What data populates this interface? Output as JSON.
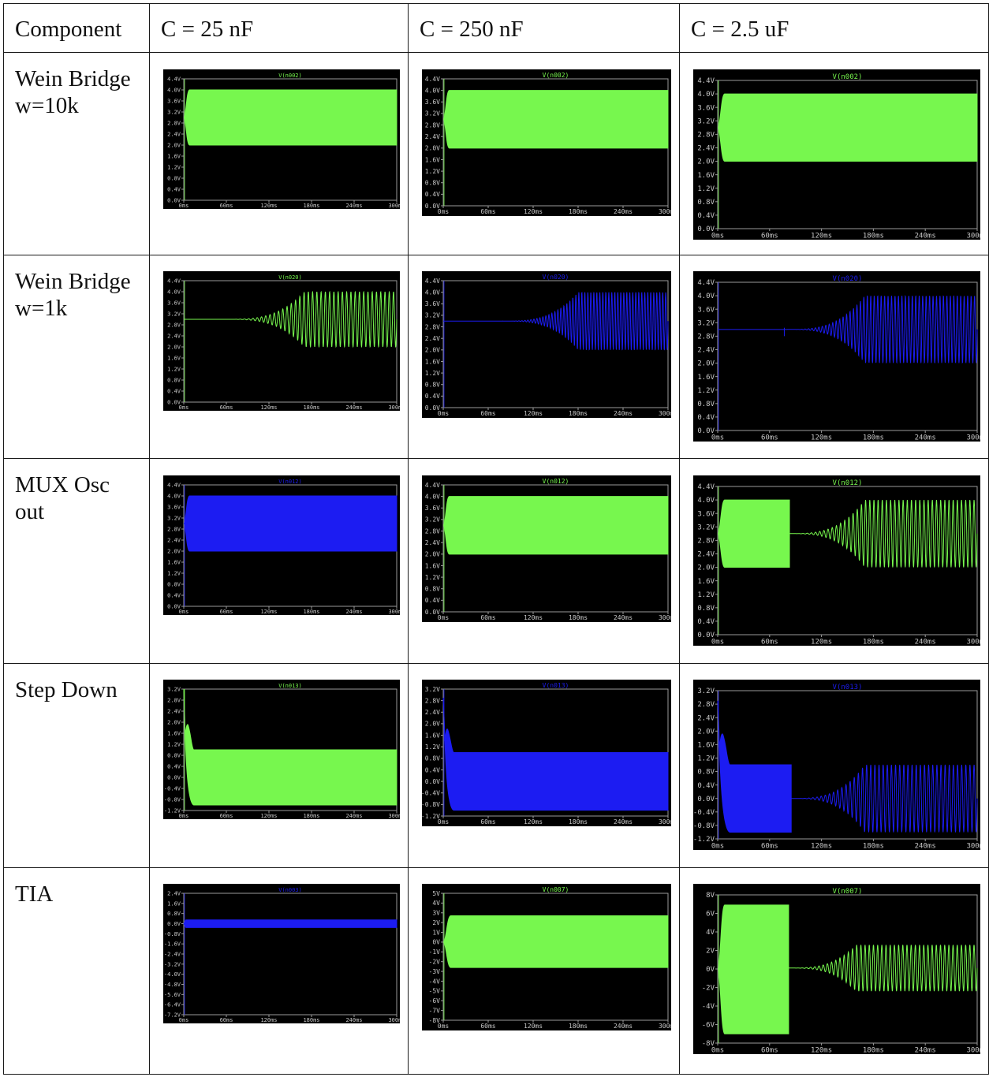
{
  "table": {
    "header": [
      "Component",
      "C = 25 nF",
      "C = 250 nF",
      "C = 2.5 uF"
    ],
    "rows": [
      {
        "label": "Wein Bridge w=10k"
      },
      {
        "label": "Wein Bridge w=1k"
      },
      {
        "label": "MUX Osc out"
      },
      {
        "label": "Step Down"
      },
      {
        "label": "TIA"
      }
    ]
  },
  "colors": {
    "green": "#77f74e",
    "blue": "#1c1cf2",
    "axis": "#9a9a9a",
    "tick_text": "#c8c8c8"
  },
  "x_ticks": [
    "0ms",
    "60ms",
    "120ms",
    "180ms",
    "240ms",
    "300ms"
  ],
  "chart_data": [
    {
      "type": "line",
      "row": "Wein Bridge w=10k",
      "cap": "C = 25 nF",
      "title": "V(n002)",
      "title_color": "#77f74e",
      "color": "#77f74e",
      "yticks": [
        "0.0V",
        "0.4V",
        "0.8V",
        "1.2V",
        "1.6V",
        "2.0V",
        "2.4V",
        "2.8V",
        "3.2V",
        "3.6V",
        "4.0V",
        "4.4V"
      ],
      "ylim": [
        0,
        4.4
      ],
      "kind": "full",
      "start": 3.0,
      "env": [
        2.0,
        4.0
      ],
      "settle_ms": 8
    },
    {
      "type": "line",
      "row": "Wein Bridge w=10k",
      "cap": "C = 250 nF",
      "title": "V(n002)",
      "title_color": "#77f74e",
      "color": "#77f74e",
      "yticks": [
        "0.0V",
        "0.4V",
        "0.8V",
        "1.2V",
        "1.6V",
        "2.0V",
        "2.4V",
        "2.8V",
        "3.2V",
        "3.6V",
        "4.0V",
        "4.4V"
      ],
      "ylim": [
        0,
        4.4
      ],
      "kind": "full",
      "start": 3.0,
      "env": [
        2.0,
        4.0
      ],
      "settle_ms": 8
    },
    {
      "type": "line",
      "row": "Wein Bridge w=10k",
      "cap": "C = 2.5 uF",
      "title": "V(n002)",
      "title_color": "#77f74e",
      "color": "#77f74e",
      "yticks": [
        "0.0V",
        "0.4V",
        "0.8V",
        "1.2V",
        "1.6V",
        "2.0V",
        "2.4V",
        "2.8V",
        "3.2V",
        "3.6V",
        "4.0V",
        "4.4V"
      ],
      "ylim": [
        0,
        4.4
      ],
      "kind": "full",
      "start": 3.0,
      "env": [
        2.0,
        4.0
      ],
      "settle_ms": 8
    },
    {
      "type": "line",
      "row": "Wein Bridge w=1k",
      "cap": "C = 25 nF",
      "title": "V(n020)",
      "title_color": "#77f74e",
      "color": "#77f74e",
      "yticks": [
        "0.0V",
        "0.4V",
        "0.8V",
        "1.2V",
        "1.6V",
        "2.0V",
        "2.4V",
        "2.8V",
        "3.2V",
        "3.6V",
        "4.0V",
        "4.4V"
      ],
      "ylim": [
        0,
        4.4
      ],
      "kind": "grow",
      "start": 3.0,
      "env": [
        2.0,
        4.0
      ],
      "grow_start_ms": 60,
      "grow_end_ms": 170,
      "cycles": 40
    },
    {
      "type": "line",
      "row": "Wein Bridge w=1k",
      "cap": "C = 250 nF",
      "title": "V(n020)",
      "title_color": "#1c1cf2",
      "color": "#1c1cf2",
      "yticks": [
        "0.0V",
        "0.4V",
        "0.8V",
        "1.2V",
        "1.6V",
        "2.0V",
        "2.4V",
        "2.8V",
        "3.2V",
        "3.6V",
        "4.0V",
        "4.4V"
      ],
      "ylim": [
        0,
        4.4
      ],
      "kind": "grow",
      "start": 3.0,
      "env": [
        2.0,
        4.0
      ],
      "grow_start_ms": 80,
      "grow_end_ms": 180,
      "cycles": 55
    },
    {
      "type": "line",
      "row": "Wein Bridge w=1k",
      "cap": "C = 2.5 uF",
      "title": "V(n020)",
      "title_color": "#1c1cf2",
      "color": "#1c1cf2",
      "yticks": [
        "0.0V",
        "0.4V",
        "0.8V",
        "1.2V",
        "1.6V",
        "2.0V",
        "2.4V",
        "2.8V",
        "3.2V",
        "3.6V",
        "4.0V",
        "4.4V"
      ],
      "ylim": [
        0,
        4.4
      ],
      "kind": "grow",
      "start": 3.0,
      "env": [
        2.0,
        4.0
      ],
      "grow_start_ms": 80,
      "grow_end_ms": 170,
      "cycles": 55,
      "glitch_ms": 77
    },
    {
      "type": "line",
      "row": "MUX Osc out",
      "cap": "C = 25 nF",
      "title": "V(n012)",
      "title_color": "#1c1cf2",
      "color": "#1c1cf2",
      "yticks": [
        "0.0V",
        "0.4V",
        "0.8V",
        "1.2V",
        "1.6V",
        "2.0V",
        "2.4V",
        "2.8V",
        "3.2V",
        "3.6V",
        "4.0V",
        "4.4V"
      ],
      "ylim": [
        0,
        4.4
      ],
      "kind": "full",
      "start": 3.0,
      "env": [
        2.0,
        4.0
      ],
      "settle_ms": 8
    },
    {
      "type": "line",
      "row": "MUX Osc out",
      "cap": "C = 250 nF",
      "title": "V(n012)",
      "title_color": "#77f74e",
      "color": "#77f74e",
      "yticks": [
        "0.0V",
        "0.4V",
        "0.8V",
        "1.2V",
        "1.6V",
        "2.0V",
        "2.4V",
        "2.8V",
        "3.2V",
        "3.6V",
        "4.0V",
        "4.4V"
      ],
      "ylim": [
        0,
        4.4
      ],
      "kind": "full",
      "start": 3.0,
      "env": [
        2.0,
        4.0
      ],
      "settle_ms": 8
    },
    {
      "type": "line",
      "row": "MUX Osc out",
      "cap": "C = 2.5 uF",
      "title": "V(n012)",
      "title_color": "#77f74e",
      "color": "#77f74e",
      "yticks": [
        "0.0V",
        "0.4V",
        "0.8V",
        "1.2V",
        "1.6V",
        "2.0V",
        "2.4V",
        "2.8V",
        "3.2V",
        "3.6V",
        "4.0V",
        "4.4V"
      ],
      "ylim": [
        0,
        4.4
      ],
      "kind": "block_then_grow",
      "start": 3.0,
      "env": [
        2.0,
        4.0
      ],
      "block_end_ms": 83,
      "grow_end_ms": 170,
      "cycles": 45
    },
    {
      "type": "line",
      "row": "Step Down",
      "cap": "C = 25 nF",
      "title": "V(n013)",
      "title_color": "#77f74e",
      "color": "#77f74e",
      "yticks": [
        "-1.2V",
        "-0.8V",
        "-0.4V",
        "0.0V",
        "0.4V",
        "0.8V",
        "1.2V",
        "1.6V",
        "2.0V",
        "2.4V",
        "2.8V",
        "3.2V"
      ],
      "ylim": [
        -1.2,
        3.2
      ],
      "kind": "decay",
      "start": 3.2,
      "env": [
        -1.0,
        1.0
      ],
      "decay_ms": 14,
      "bump": 1.9
    },
    {
      "type": "line",
      "row": "Step Down",
      "cap": "C = 250 nF",
      "title": "V(n013)",
      "title_color": "#1c1cf2",
      "color": "#1c1cf2",
      "yticks": [
        "-1.2V",
        "-0.8V",
        "-0.4V",
        "0.0V",
        "0.4V",
        "0.8V",
        "1.2V",
        "1.6V",
        "2.0V",
        "2.4V",
        "2.8V",
        "3.2V"
      ],
      "ylim": [
        -1.2,
        3.2
      ],
      "kind": "decay",
      "start": 2.9,
      "env": [
        -1.0,
        1.0
      ],
      "decay_ms": 14,
      "bump": 1.8
    },
    {
      "type": "line",
      "row": "Step Down",
      "cap": "C = 2.5 uF",
      "title": "V(n013)",
      "title_color": "#1c1cf2",
      "color": "#1c1cf2",
      "yticks": [
        "-1.2V",
        "-0.8V",
        "-0.4V",
        "0.0V",
        "0.4V",
        "0.8V",
        "1.2V",
        "1.6V",
        "2.0V",
        "2.4V",
        "2.8V",
        "3.2V"
      ],
      "ylim": [
        -1.2,
        3.2
      ],
      "kind": "decay_then_grow",
      "start": 2.9,
      "env": [
        -1.0,
        1.0
      ],
      "decay_ms": 14,
      "bump": 1.9,
      "block_end_ms": 85,
      "grow_end_ms": 170,
      "cycles": 45
    },
    {
      "type": "line",
      "row": "TIA",
      "cap": "C = 25 nF",
      "title": "V(n003)",
      "title_color": "#1c1cf2",
      "color": "#1c1cf2",
      "yticks": [
        "-7.2V",
        "-6.4V",
        "-5.6V",
        "-4.8V",
        "-4.0V",
        "-3.2V",
        "-2.4V",
        "-1.6V",
        "-0.8V",
        "0.0V",
        "0.8V",
        "1.6V",
        "2.4V"
      ],
      "ylim": [
        -7.2,
        2.4
      ],
      "kind": "band",
      "start": 0.0,
      "env": [
        -0.3,
        0.3
      ],
      "settle_ms": 3
    },
    {
      "type": "line",
      "row": "TIA",
      "cap": "C = 250 nF",
      "title": "V(n007)",
      "title_color": "#77f74e",
      "color": "#77f74e",
      "yticks": [
        "-8V",
        "-7V",
        "-6V",
        "-5V",
        "-4V",
        "-3V",
        "-2V",
        "-1V",
        "0V",
        "1V",
        "2V",
        "3V",
        "4V",
        "5V"
      ],
      "ylim": [
        -8,
        5
      ],
      "kind": "full",
      "start": 0.0,
      "env": [
        -2.6,
        2.7
      ],
      "settle_ms": 10
    },
    {
      "type": "line",
      "row": "TIA",
      "cap": "C = 2.5 uF",
      "title": "V(n007)",
      "title_color": "#77f74e",
      "color": "#77f74e",
      "yticks": [
        "-8V",
        "-6V",
        "-4V",
        "-2V",
        "0V",
        "2V",
        "4V",
        "6V",
        "8V"
      ],
      "ylim": [
        -8,
        8
      ],
      "kind": "block_then_grow",
      "start": 0.0,
      "env": [
        -7.0,
        6.9
      ],
      "env2": [
        -2.4,
        2.6
      ],
      "block_end_ms": 82,
      "grow_end_ms": 160,
      "cycles": 45
    }
  ]
}
